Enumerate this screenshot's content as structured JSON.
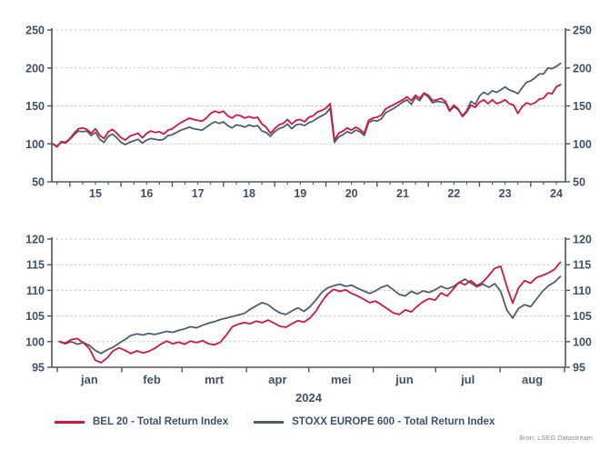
{
  "page": {
    "background": "#ffffff"
  },
  "source_note": "Bron: LSEG Datastream",
  "colors": {
    "bel20": "#d2163f",
    "stoxx600": "#505d6d",
    "axis": "#4a5560",
    "grid": "#c3c6ca",
    "text": "#40506a"
  },
  "legend": [
    {
      "label": "BEL 20 - Total Return Index",
      "color": "#d2163f"
    },
    {
      "label": "STOXX EUROPE 600 - Total Return Index",
      "color": "#505d6d"
    }
  ],
  "chart_data": [
    {
      "type": "line",
      "id": "total-return-10yr",
      "x_unit": "year",
      "x_tick_years": [
        2015,
        2016,
        2017,
        2018,
        2019,
        2020,
        2021,
        2022,
        2023,
        2024
      ],
      "x_tick_labels": [
        "15",
        "16",
        "17",
        "18",
        "19",
        "20",
        "21",
        "22",
        "23",
        "24"
      ],
      "ylim": [
        50,
        250
      ],
      "y_ticks": [
        50,
        100,
        150,
        200,
        250
      ],
      "grid": "dashed-horizontal",
      "legend_position": "bottom",
      "series": [
        {
          "name": "BEL 20 - Total Return Index",
          "color": "#d2163f",
          "x_start_year": 2014.6667,
          "x_step_years": 0.08333,
          "values": [
            100,
            96,
            103,
            102,
            107,
            114,
            120,
            121,
            119,
            114,
            120,
            111,
            107,
            116,
            119,
            114,
            108,
            105,
            110,
            112,
            114,
            108,
            114,
            117,
            115,
            116,
            113,
            118,
            120,
            124,
            128,
            131,
            134,
            132,
            131,
            130,
            134,
            140,
            143,
            141,
            143,
            137,
            134,
            138,
            137,
            134,
            136,
            134,
            135,
            126,
            122,
            114,
            120,
            125,
            127,
            132,
            126,
            131,
            132,
            129,
            135,
            137,
            142,
            144,
            147,
            153,
            105,
            114,
            117,
            121,
            118,
            122,
            119,
            114,
            131,
            134,
            135,
            138,
            146,
            149,
            152,
            155,
            158,
            162,
            157,
            164,
            160,
            167,
            164,
            157,
            158,
            160,
            156,
            144,
            151,
            146,
            136,
            142,
            151,
            148,
            155,
            158,
            153,
            158,
            153,
            155,
            158,
            153,
            151,
            140,
            149,
            154,
            152,
            154,
            159,
            160,
            167,
            166,
            175,
            178
          ]
        },
        {
          "name": "STOXX EUROPE 600 - Total Return Index",
          "color": "#505d6d",
          "x_start_year": 2014.6667,
          "x_step_years": 0.08333,
          "values": [
            100,
            97,
            102,
            101,
            106,
            112,
            117,
            116,
            117,
            111,
            115,
            106,
            102,
            110,
            113,
            108,
            102,
            99,
            102,
            104,
            106,
            101,
            105,
            107,
            106,
            105,
            106,
            111,
            112,
            115,
            118,
            120,
            122,
            120,
            119,
            118,
            122,
            126,
            129,
            127,
            129,
            124,
            121,
            125,
            124,
            122,
            125,
            123,
            124,
            117,
            115,
            110,
            116,
            120,
            122,
            126,
            120,
            125,
            126,
            124,
            128,
            130,
            134,
            137,
            140,
            147,
            102,
            109,
            112,
            116,
            114,
            118,
            116,
            111,
            128,
            131,
            130,
            133,
            141,
            144,
            147,
            151,
            155,
            158,
            152,
            161,
            157,
            166,
            162,
            154,
            156,
            155,
            154,
            143,
            149,
            145,
            137,
            144,
            156,
            152,
            163,
            168,
            165,
            170,
            168,
            171,
            175,
            171,
            169,
            166,
            174,
            181,
            183,
            187,
            192,
            192,
            200,
            199,
            202,
            206
          ]
        }
      ]
    },
    {
      "type": "line",
      "id": "total-return-2024-ytd",
      "xlabel": "2024",
      "x_unit": "day_of_year_2024",
      "month_tick_days": [
        1,
        32,
        61,
        92,
        122,
        153,
        183,
        214,
        245
      ],
      "x_tick_labels": [
        "jan",
        "feb",
        "mrt",
        "apr",
        "mei",
        "jun",
        "jul",
        "aug"
      ],
      "ylim": [
        95,
        120
      ],
      "y_ticks": [
        95,
        100,
        105,
        110,
        115,
        120
      ],
      "grid": "dashed-horizontal",
      "legend_position": "bottom",
      "series": [
        {
          "name": "BEL 20 - Total Return Index",
          "color": "#d2163f",
          "x_start_day": 2,
          "x_step_days": 2.869,
          "values": [
            100.0,
            99.7,
            100.4,
            100.6,
            99.8,
            98.7,
            96.4,
            95.9,
            96.8,
            98.2,
            98.8,
            98.3,
            97.7,
            98.2,
            97.8,
            98.1,
            98.7,
            99.5,
            100.1,
            99.6,
            99.9,
            99.5,
            100.1,
            99.8,
            100.2,
            99.6,
            99.4,
            99.9,
            101.3,
            102.9,
            103.4,
            103.7,
            103.5,
            104.0,
            103.7,
            104.2,
            103.6,
            103.0,
            102.8,
            103.5,
            104.1,
            103.8,
            104.6,
            105.9,
            107.8,
            109.3,
            110.2,
            109.8,
            110.1,
            109.4,
            108.9,
            108.3,
            107.6,
            107.9,
            107.2,
            106.4,
            105.6,
            105.3,
            106.2,
            105.8,
            106.9,
            107.8,
            108.4,
            108.1,
            109.5,
            108.9,
            110.2,
            111.6,
            111.1,
            111.9,
            110.9,
            111.6,
            112.9,
            114.3,
            114.7,
            110.8,
            107.5,
            110.5,
            111.9,
            111.4,
            112.5,
            112.9,
            113.4,
            114.1,
            115.5
          ]
        },
        {
          "name": "STOXX EUROPE 600 - Total Return Index",
          "color": "#505d6d",
          "x_start_day": 2,
          "x_step_days": 2.869,
          "values": [
            100.0,
            99.6,
            100.0,
            99.5,
            99.8,
            99.3,
            98.3,
            97.7,
            98.4,
            98.9,
            99.7,
            100.4,
            101.2,
            101.5,
            101.3,
            101.6,
            101.4,
            101.7,
            102.0,
            101.8,
            102.2,
            102.5,
            102.9,
            102.7,
            103.2,
            103.6,
            103.9,
            104.3,
            104.6,
            104.9,
            105.2,
            105.5,
            106.3,
            107.0,
            107.6,
            107.2,
            106.3,
            105.6,
            105.3,
            106.0,
            106.6,
            105.9,
            106.8,
            108.1,
            109.6,
            110.5,
            110.9,
            111.2,
            110.8,
            111.0,
            110.4,
            109.9,
            109.4,
            109.9,
            110.6,
            111.0,
            110.1,
            109.2,
            108.9,
            109.8,
            109.3,
            109.9,
            109.6,
            110.1,
            110.8,
            110.3,
            110.7,
            111.5,
            112.2,
            111.4,
            110.7,
            111.2,
            110.6,
            111.3,
            109.8,
            106.2,
            104.6,
            106.5,
            107.2,
            106.8,
            108.3,
            109.8,
            110.9,
            111.6,
            112.7
          ]
        }
      ]
    }
  ]
}
